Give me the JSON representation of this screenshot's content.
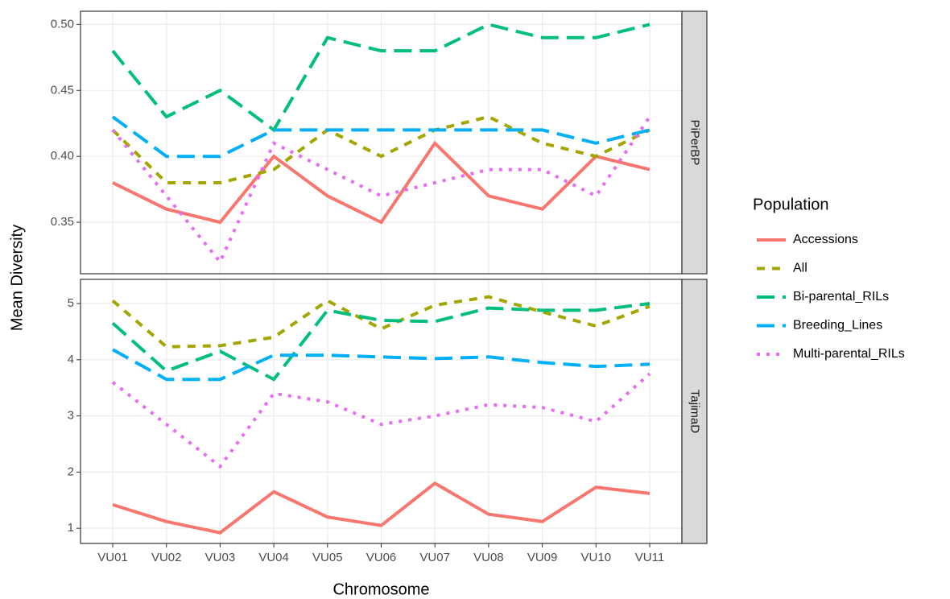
{
  "chart_data": [
    {
      "type": "line",
      "facet": "PiPerBP",
      "ylabel": "Mean Diversity",
      "legend_title": "Population",
      "legend_position": "right",
      "categories": [
        "VU01",
        "VU02",
        "VU03",
        "VU04",
        "VU05",
        "VU06",
        "VU07",
        "VU08",
        "VU09",
        "VU10",
        "VU11"
      ],
      "ylim": [
        0.311,
        0.51
      ],
      "yticks": [
        0.35,
        {
          "value": 0.4,
          "label": "0.40"
        },
        0.45,
        {
          "value": 0.5,
          "label": "0.50"
        }
      ],
      "grid": true,
      "series": [
        {
          "name": "Accessions",
          "color": "#F8766D",
          "linetype": "solid",
          "values": [
            0.38,
            0.36,
            0.35,
            0.4,
            0.37,
            0.35,
            0.41,
            0.37,
            0.36,
            0.4,
            0.39
          ]
        },
        {
          "name": "All",
          "color": "#A3A500",
          "linetype": "dashed",
          "values": [
            0.42,
            0.38,
            0.38,
            0.39,
            0.42,
            0.4,
            0.42,
            0.43,
            0.41,
            0.4,
            0.42
          ]
        },
        {
          "name": "Bi-parental_RILs",
          "color": "#00BF7D",
          "linetype": "longdash",
          "values": [
            0.48,
            0.43,
            0.45,
            0.42,
            0.49,
            0.48,
            0.48,
            0.5,
            0.49,
            0.49,
            0.5
          ]
        },
        {
          "name": "Breeding_Lines",
          "color": "#00B0F6",
          "linetype": "longdash",
          "values": [
            0.43,
            0.4,
            0.4,
            0.42,
            0.42,
            0.42,
            0.42,
            0.42,
            0.42,
            0.41,
            0.42
          ]
        },
        {
          "name": "Multi-parental_RILs",
          "color": "#E76BF3",
          "linetype": "dotted",
          "values": [
            0.42,
            0.37,
            0.32,
            0.41,
            0.39,
            0.37,
            0.38,
            0.39,
            0.39,
            0.37,
            0.43
          ]
        }
      ]
    },
    {
      "type": "line",
      "facet": "TajimaD",
      "xlabel": "Chromosome",
      "ylim": [
        0.73,
        5.43
      ],
      "yticks": [
        1,
        2,
        3,
        4,
        5
      ],
      "grid": true,
      "series": [
        {
          "color": "#F8766D",
          "linetype": "solid",
          "values": [
            1.42,
            1.12,
            0.92,
            1.65,
            1.2,
            1.05,
            1.8,
            1.25,
            1.12,
            1.73,
            1.62
          ]
        },
        {
          "color": "#A3A500",
          "linetype": "dashed",
          "values": [
            5.05,
            4.23,
            4.25,
            4.4,
            5.05,
            4.55,
            4.97,
            5.12,
            4.85,
            4.6,
            4.95
          ]
        },
        {
          "color": "#00BF7D",
          "linetype": "longdash",
          "values": [
            4.65,
            3.8,
            4.15,
            3.65,
            4.88,
            4.7,
            4.68,
            4.92,
            4.88,
            4.88,
            5.0
          ]
        },
        {
          "color": "#00B0F6",
          "linetype": "longdash",
          "values": [
            4.18,
            3.65,
            3.65,
            4.08,
            4.08,
            4.05,
            4.02,
            4.05,
            3.95,
            3.88,
            3.92
          ]
        },
        {
          "color": "#E76BF3",
          "linetype": "dotted",
          "values": [
            3.6,
            2.85,
            2.1,
            3.4,
            3.25,
            2.85,
            3.0,
            3.2,
            3.15,
            2.9,
            3.75
          ]
        }
      ]
    }
  ]
}
